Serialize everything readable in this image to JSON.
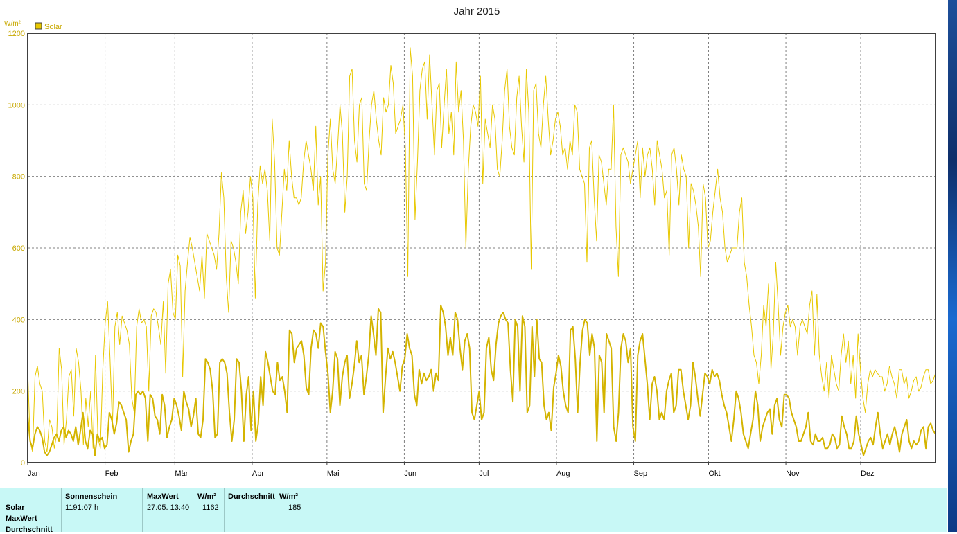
{
  "chart_data": {
    "type": "line",
    "title": "Jahr 2015",
    "ylabel": "W/m²",
    "legend": {
      "placement": "top-left",
      "entries": [
        {
          "name": "Solar",
          "color": "#e8c800"
        }
      ]
    },
    "months": [
      "Jan",
      "Feb",
      "Mär",
      "Apr",
      "Mai",
      "Jun",
      "Jul",
      "Aug",
      "Sep",
      "Okt",
      "Nov",
      "Dez"
    ],
    "month_day_starts": [
      1,
      32,
      60,
      91,
      121,
      152,
      182,
      213,
      244,
      274,
      305,
      335
    ],
    "xlim": [
      1,
      365
    ],
    "ylim": [
      0,
      1200
    ],
    "yticks": [
      "0",
      "200",
      "400",
      "600",
      "800",
      "1000",
      "1200"
    ],
    "grid": true,
    "series": [
      {
        "name": "Solar",
        "role": "max",
        "color": "#e8c800",
        "values": [
          260,
          60,
          30,
          240,
          270,
          220,
          200,
          60,
          30,
          120,
          100,
          40,
          80,
          320,
          260,
          50,
          120,
          240,
          260,
          130,
          320,
          280,
          200,
          50,
          180,
          100,
          200,
          40,
          300,
          70,
          40,
          260,
          390,
          450,
          290,
          100,
          380,
          420,
          330,
          410,
          390,
          370,
          330,
          180,
          140,
          380,
          430,
          390,
          400,
          380,
          200,
          410,
          430,
          420,
          380,
          330,
          450,
          250,
          500,
          540,
          420,
          400,
          580,
          550,
          240,
          480,
          560,
          630,
          600,
          560,
          520,
          480,
          580,
          460,
          640,
          620,
          600,
          580,
          540,
          640,
          810,
          740,
          520,
          420,
          620,
          600,
          560,
          500,
          700,
          760,
          640,
          700,
          800,
          740,
          460,
          720,
          830,
          780,
          820,
          760,
          620,
          960,
          840,
          600,
          580,
          700,
          820,
          760,
          900,
          800,
          740,
          740,
          720,
          740,
          840,
          900,
          860,
          820,
          760,
          940,
          720,
          800,
          480,
          560,
          860,
          960,
          820,
          780,
          880,
          1000,
          920,
          700,
          800,
          1080,
          1100,
          900,
          840,
          1000,
          1020,
          780,
          760,
          900,
          1000,
          1040,
          960,
          900,
          860,
          1020,
          980,
          1000,
          1110,
          1060,
          920,
          940,
          960,
          1000,
          880,
          520,
          1160,
          1080,
          680,
          840,
          1040,
          1100,
          1120,
          960,
          1140,
          1000,
          860,
          1040,
          1060,
          880,
          1000,
          1100,
          920,
          980,
          860,
          1120,
          980,
          1040,
          900,
          600,
          820,
          940,
          1000,
          980,
          940,
          1080,
          780,
          960,
          920,
          880,
          1000,
          960,
          820,
          800,
          900,
          1040,
          1100,
          940,
          880,
          860,
          1020,
          1080,
          940,
          840,
          1100,
          980,
          540,
          1040,
          1060,
          920,
          880,
          1000,
          1080,
          960,
          860,
          900,
          960,
          980,
          940,
          860,
          880,
          820,
          900,
          860,
          1000,
          980,
          820,
          800,
          780,
          560,
          880,
          900,
          740,
          620,
          860,
          840,
          780,
          720,
          820,
          820,
          1000,
          660,
          520,
          860,
          880,
          860,
          840,
          780,
          820,
          860,
          900,
          740,
          880,
          800,
          860,
          880,
          820,
          720,
          900,
          860,
          820,
          740,
          760,
          580,
          860,
          880,
          820,
          720,
          860,
          820,
          800,
          600,
          780,
          760,
          720,
          660,
          520,
          780,
          740,
          600,
          620,
          700,
          760,
          820,
          740,
          700,
          600,
          560,
          580,
          600,
          600,
          600,
          700,
          740,
          560,
          520,
          440,
          380,
          300,
          280,
          220,
          300,
          440,
          380,
          500,
          260,
          360,
          560,
          440,
          300,
          380,
          420,
          440,
          380,
          400,
          380,
          300,
          380,
          400,
          380,
          360,
          440,
          480,
          300,
          470,
          300,
          240,
          200,
          280,
          180,
          300,
          260,
          220,
          200,
          300,
          360,
          280,
          340,
          220,
          300,
          180,
          360,
          260,
          180,
          140,
          220,
          260,
          240,
          260,
          250,
          240,
          240,
          200,
          220,
          270,
          240,
          220,
          180,
          260,
          260,
          220,
          240,
          180,
          200,
          230,
          240,
          200,
          210,
          240,
          260,
          260,
          220,
          230,
          250
        ]
      },
      {
        "name": "Solar",
        "role": "average",
        "color": "#d4b400",
        "values": [
          130,
          60,
          40,
          80,
          100,
          90,
          70,
          30,
          20,
          30,
          50,
          70,
          80,
          60,
          90,
          100,
          70,
          90,
          80,
          60,
          100,
          50,
          90,
          140,
          60,
          40,
          90,
          80,
          20,
          80,
          60,
          70,
          40,
          50,
          140,
          120,
          80,
          110,
          170,
          160,
          140,
          120,
          30,
          60,
          80,
          190,
          200,
          190,
          200,
          180,
          60,
          190,
          180,
          130,
          120,
          80,
          190,
          160,
          70,
          100,
          120,
          180,
          160,
          130,
          90,
          200,
          170,
          150,
          100,
          130,
          180,
          80,
          70,
          120,
          290,
          280,
          260,
          200,
          70,
          80,
          280,
          290,
          280,
          250,
          140,
          60,
          120,
          290,
          280,
          200,
          60,
          190,
          240,
          90,
          200,
          60,
          110,
          240,
          160,
          310,
          280,
          240,
          200,
          190,
          280,
          230,
          240,
          200,
          140,
          370,
          360,
          280,
          320,
          330,
          340,
          300,
          210,
          190,
          320,
          370,
          360,
          320,
          390,
          380,
          310,
          250,
          140,
          200,
          310,
          290,
          160,
          240,
          280,
          300,
          180,
          220,
          270,
          340,
          280,
          300,
          190,
          240,
          300,
          410,
          360,
          300,
          430,
          420,
          140,
          240,
          320,
          290,
          310,
          280,
          240,
          200,
          270,
          290,
          360,
          320,
          300,
          190,
          160,
          260,
          220,
          250,
          230,
          240,
          260,
          200,
          250,
          230,
          440,
          420,
          380,
          300,
          350,
          300,
          420,
          400,
          320,
          260,
          340,
          360,
          320,
          140,
          120,
          160,
          200,
          120,
          140,
          320,
          350,
          260,
          230,
          330,
          390,
          410,
          420,
          400,
          390,
          260,
          170,
          400,
          380,
          200,
          410,
          380,
          140,
          160,
          380,
          240,
          400,
          290,
          280,
          160,
          120,
          140,
          90,
          210,
          250,
          300,
          270,
          200,
          160,
          140,
          370,
          380,
          290,
          140,
          280,
          370,
          400,
          390,
          300,
          360,
          320,
          60,
          300,
          280,
          140,
          360,
          340,
          320,
          100,
          60,
          140,
          320,
          360,
          340,
          280,
          320,
          100,
          60,
          300,
          340,
          360,
          290,
          220,
          120,
          220,
          240,
          200,
          120,
          140,
          120,
          200,
          230,
          250,
          140,
          160,
          260,
          260,
          200,
          160,
          120,
          160,
          280,
          240,
          180,
          130,
          190,
          250,
          240,
          220,
          260,
          240,
          250,
          230,
          190,
          160,
          140,
          100,
          60,
          120,
          200,
          180,
          140,
          80,
          60,
          40,
          80,
          120,
          200,
          160,
          60,
          100,
          120,
          140,
          150,
          80,
          160,
          180,
          120,
          100,
          190,
          190,
          180,
          140,
          120,
          100,
          60,
          60,
          80,
          100,
          140,
          60,
          50,
          80,
          60,
          60,
          70,
          40,
          40,
          50,
          80,
          70,
          40,
          50,
          130,
          100,
          80,
          40,
          40,
          60,
          130,
          80,
          50,
          20,
          40,
          60,
          70,
          50,
          100,
          140,
          80,
          40,
          60,
          80,
          50,
          80,
          100,
          70,
          30,
          80,
          100,
          120,
          60,
          40,
          60,
          50,
          60,
          90,
          100,
          40,
          100,
          110,
          90,
          80
        ]
      }
    ]
  },
  "summary": {
    "rows": [
      "Solar",
      "MaxWert",
      "Durchschnitt"
    ],
    "sonnenschein": {
      "header": "Sonnenschein",
      "value": "1191:07 h"
    },
    "maxwert": {
      "header": "MaxWert",
      "unit": "W/m²",
      "date": "27.05.  13:40",
      "value": "1162"
    },
    "durchschnitt": {
      "header": "Durchschnitt",
      "unit": "W/m²",
      "value": "185"
    }
  }
}
